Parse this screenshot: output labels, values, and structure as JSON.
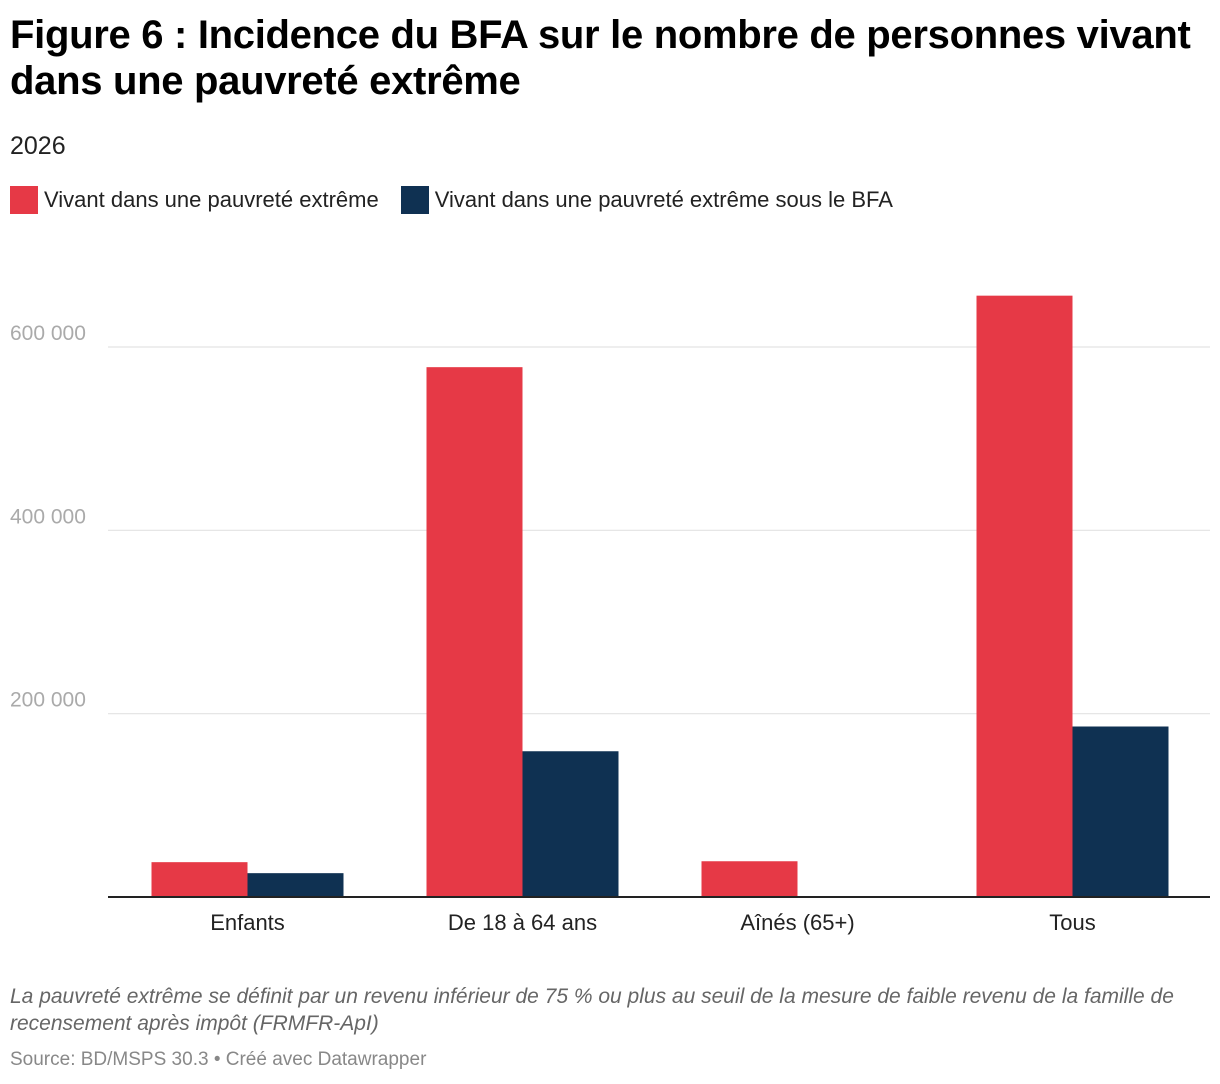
{
  "title": "Figure 6 : Incidence du BFA sur le nombre de personnes vivant dans une pauvreté extrême",
  "subtitle": "2026",
  "note": "La pauvreté extrême se définit par un revenu inférieur de 75 % ou plus au seuil de la mesure de faible revenu de la famille de recensement après impôt (FRMFR-ApI)",
  "source": "Source: BD/MSPS 30.3 • Créé avec Datawrapper",
  "chart_data": {
    "type": "bar",
    "title": "Figure 6 : Incidence du BFA sur le nombre de personnes vivant dans une pauvreté extrême",
    "subtitle": "2026",
    "categories": [
      "Enfants",
      "De 18 à 64 ans",
      "Aînés (65+)",
      "Tous"
    ],
    "series": [
      {
        "name": "Vivant dans une pauvreté extrême",
        "color": "#e63946",
        "values": [
          38000,
          578000,
          39000,
          656000
        ]
      },
      {
        "name": "Vivant dans une pauvreté extrême sous le BFA",
        "color": "#0f3152",
        "values": [
          26000,
          159000,
          0,
          186000
        ]
      }
    ],
    "yticks": [
      200000,
      400000,
      600000
    ],
    "ytick_labels": [
      "200 000",
      "400 000",
      "600 000"
    ],
    "ylim": [
      0,
      700000
    ],
    "xlabel": "",
    "ylabel": "",
    "grid": true,
    "legend": "top-left"
  }
}
